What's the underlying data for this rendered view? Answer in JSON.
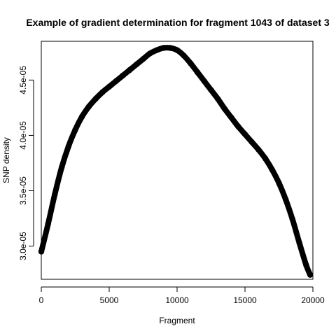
{
  "chart_data": {
    "type": "line",
    "title": "Example of gradient determination for fragment 1043 of dataset 3",
    "xlabel": "Fragment",
    "ylabel": "SNP density",
    "xlim": [
      0,
      20000
    ],
    "ylim": [
      2.7e-05,
      4.85e-05
    ],
    "x_ticks": [
      0,
      5000,
      10000,
      15000,
      20000
    ],
    "x_tick_labels": [
      "0",
      "5000",
      "10000",
      "15000",
      "20000"
    ],
    "y_ticks": [
      3e-05,
      3.5e-05,
      4e-05,
      4.5e-05
    ],
    "y_tick_labels": [
      "3.0e-05",
      "3.5e-05",
      "4.0e-05",
      "4.5e-05"
    ],
    "grid": false,
    "legend": "none",
    "line_color": "#000000",
    "series": [
      {
        "x": [
          0,
          500,
          1000,
          1500,
          2000,
          2500,
          3000,
          3500,
          4000,
          4500,
          5000,
          5500,
          6000,
          6500,
          7000,
          7500,
          8000,
          8500,
          9000,
          9500,
          10000,
          10500,
          11000,
          11500,
          12000,
          12500,
          13000,
          13500,
          14000,
          14500,
          15000,
          15500,
          16000,
          16500,
          17000,
          17500,
          18000,
          18500,
          19000,
          19500,
          19800
        ],
        "y": [
          2.95e-05,
          3.2e-05,
          3.47e-05,
          3.71e-05,
          3.9e-05,
          4.05e-05,
          4.17e-05,
          4.26e-05,
          4.33e-05,
          4.39e-05,
          4.44e-05,
          4.49e-05,
          4.54e-05,
          4.59e-05,
          4.64e-05,
          4.69e-05,
          4.74e-05,
          4.77e-05,
          4.79e-05,
          4.79e-05,
          4.77e-05,
          4.72e-05,
          4.65e-05,
          4.57e-05,
          4.49e-05,
          4.41e-05,
          4.33e-05,
          4.24e-05,
          4.16e-05,
          4.08e-05,
          4.01e-05,
          3.94e-05,
          3.87e-05,
          3.79e-05,
          3.69e-05,
          3.57e-05,
          3.42e-05,
          3.24e-05,
          3.03e-05,
          2.83e-05,
          2.74e-05
        ]
      }
    ]
  }
}
